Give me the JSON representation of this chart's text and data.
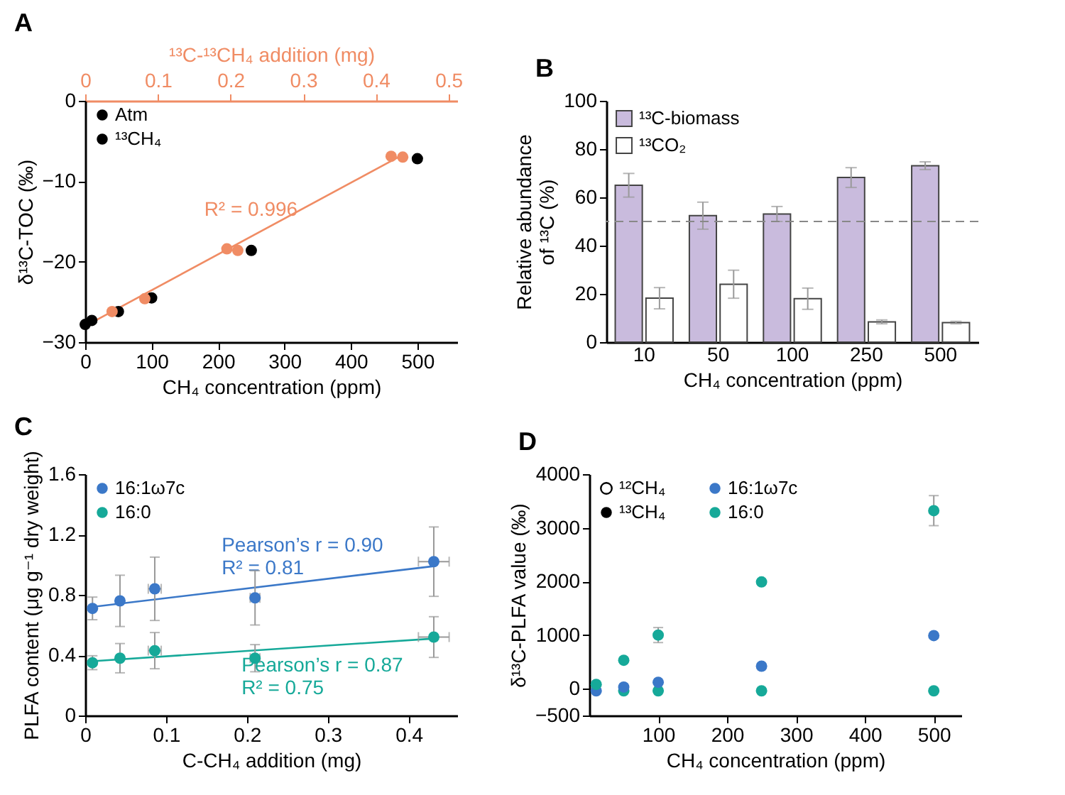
{
  "chart_data": [
    {
      "type": "scatter",
      "title": "A",
      "xlabel": "CH₄ concentration (ppm)",
      "ylabel": "δ¹³C-TOC (‰)",
      "x2label": "¹³C-¹³CH₄ addition (mg)",
      "xlim": [
        0,
        560
      ],
      "xticks": [
        0,
        100,
        200,
        300,
        400,
        500
      ],
      "x2lim": [
        0,
        0.512
      ],
      "x2ticks": [
        0,
        0.1,
        0.2,
        0.3,
        0.4,
        0.5
      ],
      "ylim": [
        -30,
        0
      ],
      "yticks": [
        -30,
        -20,
        -10,
        0
      ],
      "legend": "top left",
      "marker": "circle",
      "series": [
        {
          "name": "Atm",
          "color": "#000000",
          "x": [
            0
          ],
          "values": [
            -27.8
          ]
        },
        {
          "name": "¹³CH₄",
          "color": "#000000",
          "x": [
            10,
            50,
            100,
            250,
            500
          ],
          "values": [
            -27.3,
            -26.2,
            -24.5,
            -18.6,
            -7.2
          ]
        },
        {
          "color": "#f08c64",
          "axis": "x2",
          "x": [
            0.037,
            0.082
          ],
          "values": [
            -26.2,
            -24.6
          ]
        },
        {
          "color": "#f08c64",
          "axis": "x2",
          "x": [
            0.195,
            0.21,
            0.421,
            0.437
          ],
          "values": [
            -18.4,
            -18.6,
            -6.9,
            -7.0
          ]
        },
        {
          "name": "R² = 0.996",
          "type": "line",
          "marker": "none",
          "color": "#f08c64",
          "axis": "x2",
          "x": [
            0.004,
            0.431
          ],
          "values": [
            -27.8,
            -7.0
          ]
        }
      ]
    },
    {
      "type": "bar",
      "title": "B",
      "xlabel": "CH₄ concentration (ppm)",
      "ylabel": "Relative abundance\nof ¹³C (%)",
      "categories": [
        "10",
        "50",
        "100",
        "250",
        "500"
      ],
      "ylim": [
        0,
        100
      ],
      "yticks": [
        0,
        20,
        40,
        60,
        80,
        100
      ],
      "legend": "top left",
      "series": [
        {
          "name": "¹³C-biomass",
          "color": "#c9bbdd",
          "values": [
            65,
            52.4,
            53.1,
            68.2,
            73.1
          ],
          "errors": [
            4.9,
            5.6,
            3.1,
            4.1,
            1.6
          ]
        },
        {
          "name": "¹³CO₂",
          "color": "#ffffff",
          "values": [
            18.2,
            24,
            18,
            8.4,
            8.1
          ],
          "errors": [
            4.4,
            5.8,
            4.4,
            0.8,
            0.5
          ]
        }
      ],
      "ref_lines": [
        {
          "axis": "y",
          "value": 50,
          "color": "#888888",
          "line_style": "dashed"
        }
      ]
    },
    {
      "type": "scatter",
      "title": "C",
      "xlabel": "C-CH₄ addition (mg)",
      "ylabel": "PLFA content (μg g⁻¹ dry weight)",
      "xlim": [
        0,
        0.46
      ],
      "xticks": [
        0,
        0.1,
        0.2,
        0.3,
        0.4
      ],
      "ylim": [
        0,
        1.6
      ],
      "yticks": [
        0,
        0.4,
        0.8,
        1.2,
        1.6
      ],
      "legend": "top left",
      "marker": "circle",
      "series": [
        {
          "name": "16:1ω7c",
          "color": "#3b78c8",
          "x": [
            0.009,
            0.043,
            0.086,
            0.21,
            0.431
          ],
          "values": [
            0.71,
            0.76,
            0.84,
            0.78,
            1.02
          ],
          "errors": [
            0.075,
            0.17,
            0.21,
            0.18,
            0.23
          ],
          "xerrors": [
            null,
            null,
            0.008,
            0.006,
            0.019
          ]
        },
        {
          "name": "16:0",
          "color": "#16a999",
          "x": [
            0.009,
            0.043,
            0.086,
            0.21,
            0.431
          ],
          "values": [
            0.35,
            0.38,
            0.43,
            0.38,
            0.52
          ],
          "errors": [
            0.046,
            0.097,
            0.12,
            0.09,
            0.135
          ],
          "xerrors": [
            null,
            null,
            0.008,
            0.006,
            0.019
          ]
        },
        {
          "name": "Pearson’s r = 0.90\nR² = 0.81",
          "type": "line",
          "marker": "none",
          "color": "#3b78c8",
          "x": [
            0.009,
            0.431
          ],
          "values": [
            0.72,
            0.99
          ]
        },
        {
          "name": "Pearson’s r = 0.87\nR² = 0.75",
          "type": "line",
          "marker": "none",
          "color": "#16a999",
          "x": [
            0.009,
            0.431
          ],
          "values": [
            0.36,
            0.51
          ]
        }
      ]
    },
    {
      "type": "scatter",
      "title": "D",
      "xlabel": "CH₄ concentration (ppm)",
      "ylabel": "δ¹³C-PLFA value (‰)",
      "xlim": [
        0,
        540
      ],
      "xticks": [
        100,
        200,
        300,
        400,
        500
      ],
      "ylim": [
        -500,
        4000
      ],
      "yticks": [
        -500,
        0,
        1000,
        2000,
        3000,
        4000
      ],
      "legend": "top left",
      "marker": "circle",
      "annotations": [
        "¹²CH₄",
        "¹³CH₄"
      ],
      "series": [
        {
          "color": "#3b78c8",
          "x": [
            10
          ],
          "values": [
            -40
          ]
        },
        {
          "color": "#16a999",
          "x": [
            50,
            100,
            250,
            500
          ],
          "values": [
            -40,
            -40,
            -40,
            -40
          ]
        },
        {
          "name": "16:1ω7c",
          "color": "#3b78c8",
          "x": [
            50,
            100,
            250,
            500
          ],
          "values": [
            30,
            120,
            420,
            990
          ]
        },
        {
          "name": "16:0",
          "color": "#16a999",
          "x": [
            10,
            50,
            100,
            250,
            500
          ],
          "values": [
            80,
            530,
            1000,
            1990,
            3320
          ],
          "errors": [
            null,
            null,
            140,
            null,
            280
          ]
        }
      ]
    }
  ]
}
